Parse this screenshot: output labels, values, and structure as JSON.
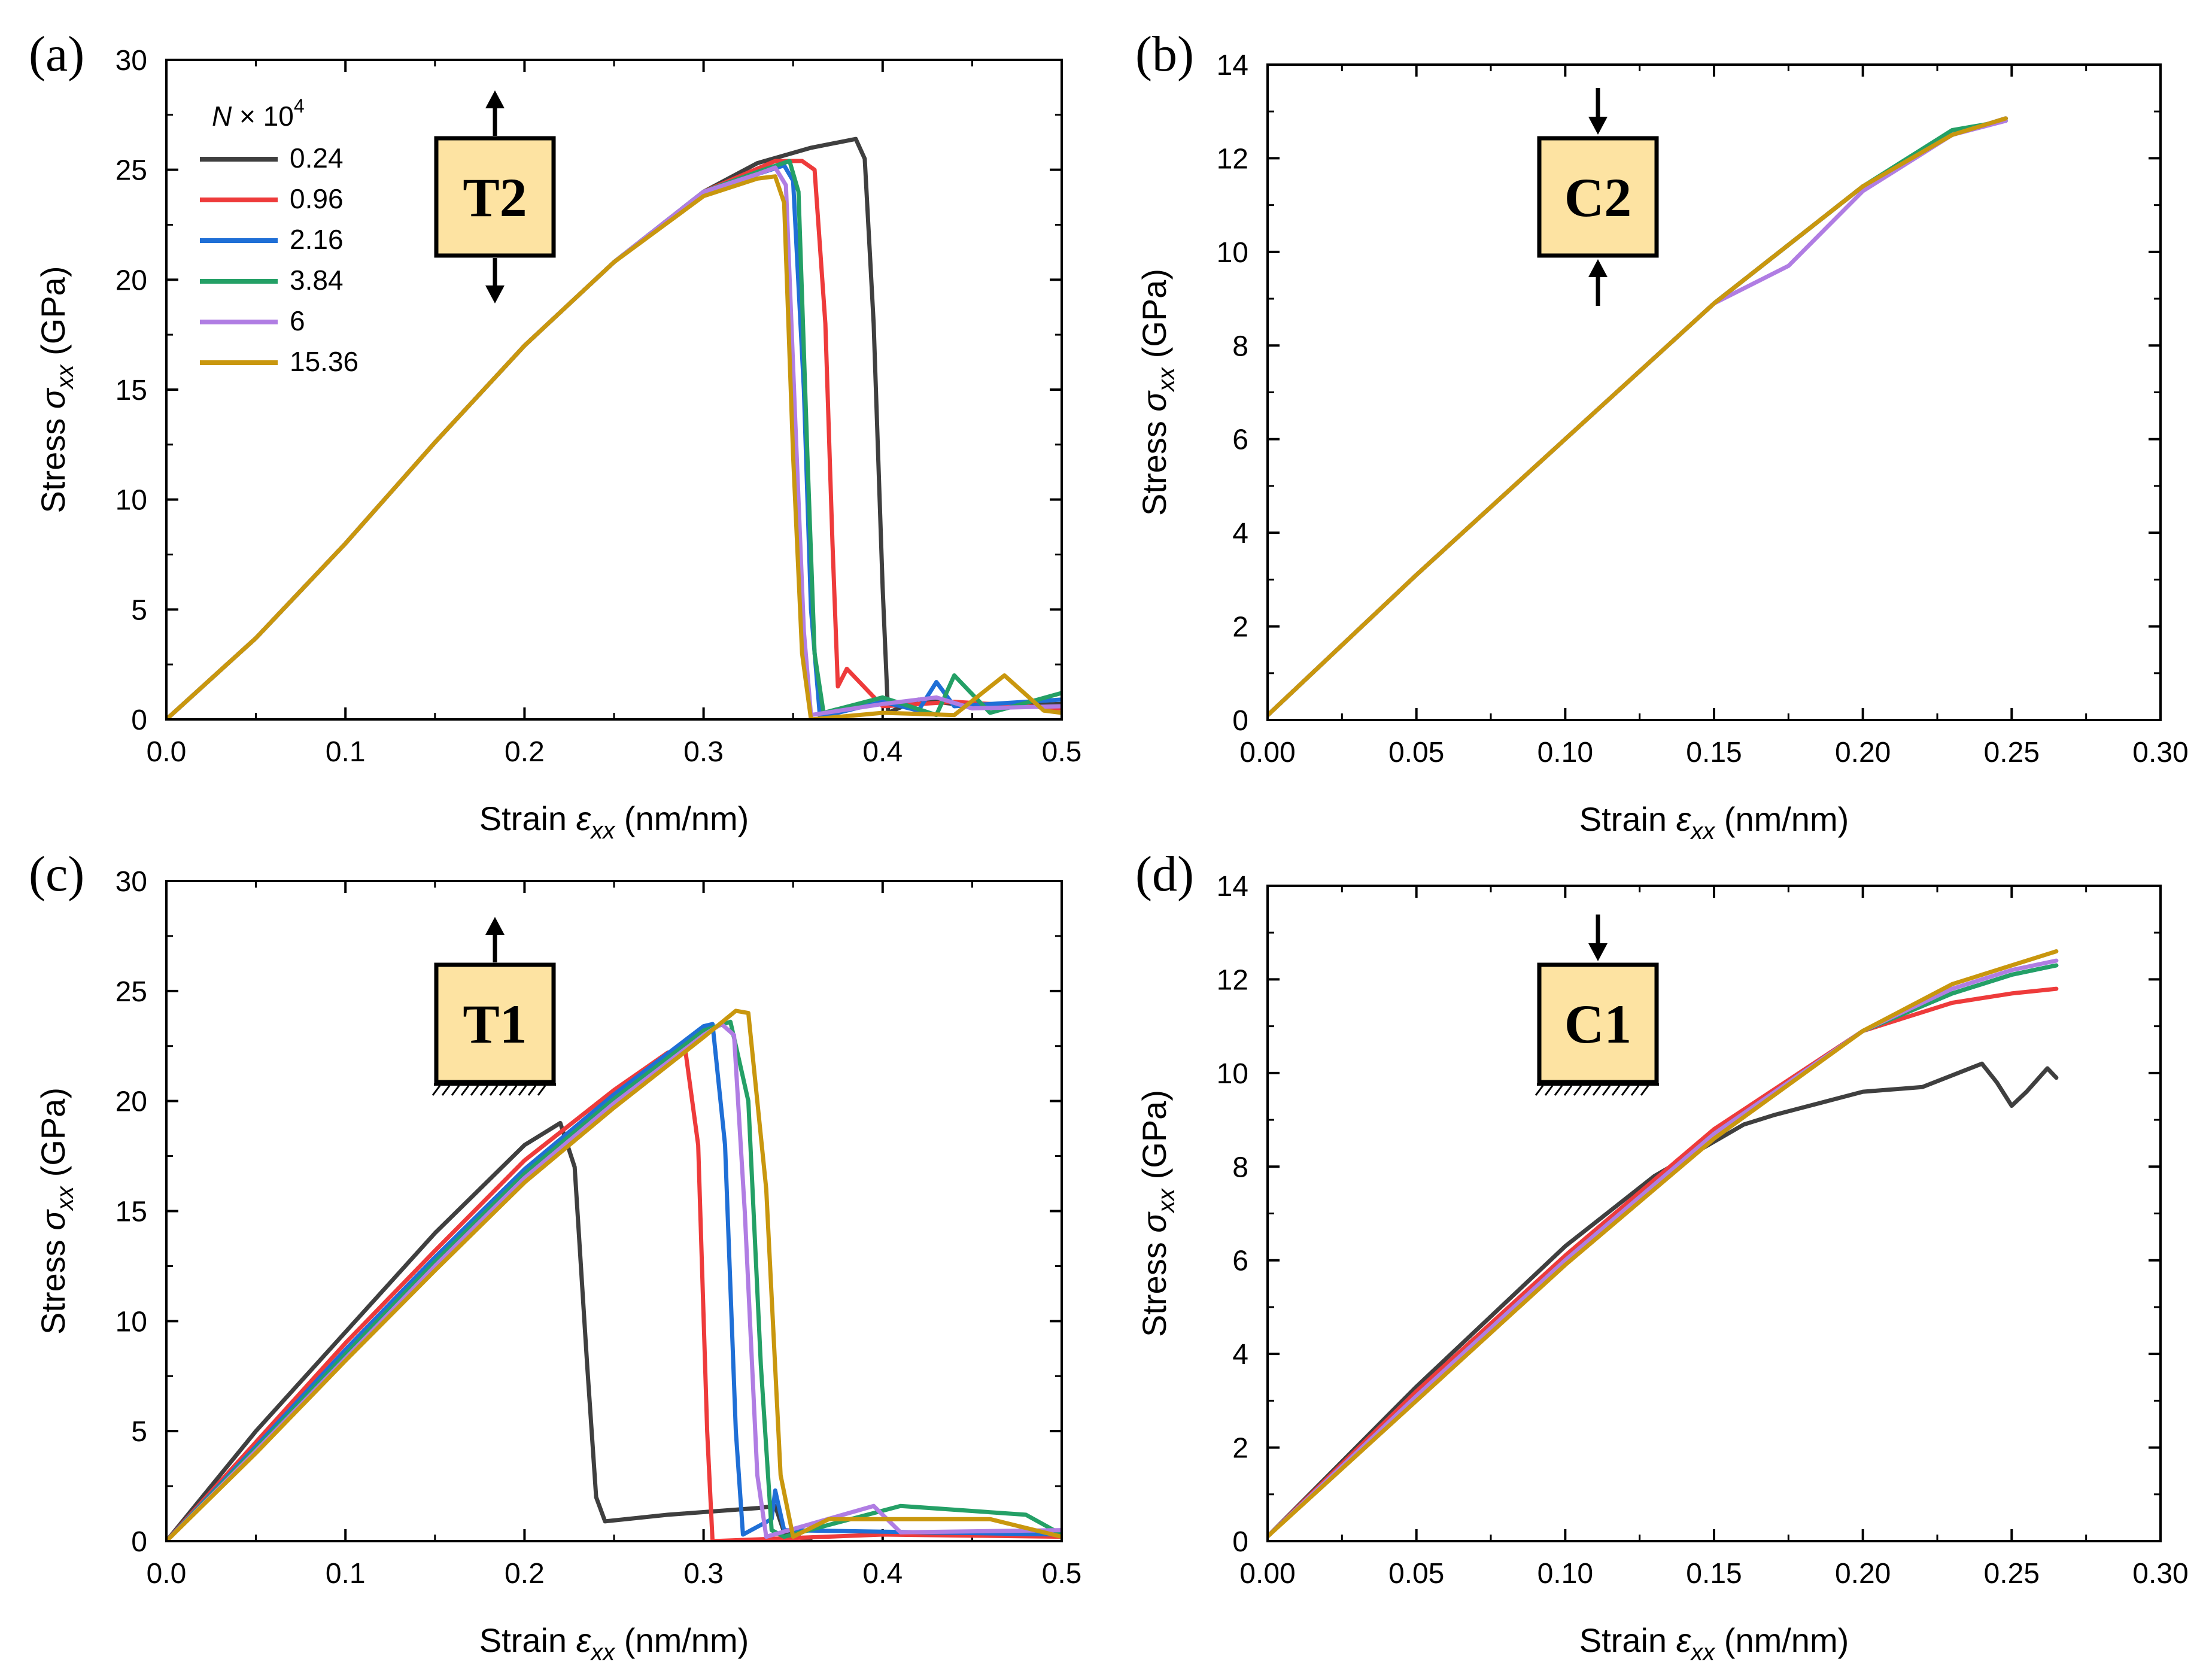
{
  "figure_type": "4-panel stress-strain figure",
  "colors": {
    "s024": "#3f3f3f",
    "s096": "#ee3b3b",
    "s216": "#1f6fd6",
    "s384": "#24a066",
    "s6": "#b07de3",
    "s1536": "#c9970e",
    "box_fill": "#fde3a2"
  },
  "legend": {
    "title": "N × 10",
    "title_var": "N",
    "title_mid": " × 10",
    "title_exp": "4",
    "items": [
      "0.24",
      "0.96",
      "2.16",
      "3.84",
      "6",
      "15.36"
    ]
  },
  "chart_data": [
    {
      "id": "a",
      "type": "line",
      "panel_label": "(a)",
      "inset_label": "T2",
      "inset_style": "double-tension",
      "xlabel": "Strain εxx (nm/nm)",
      "ylabel": "Stress σxx (GPa)",
      "xlim": [
        0,
        0.5
      ],
      "ylim": [
        0,
        30
      ],
      "xticks": [
        "0.0",
        "0.1",
        "0.2",
        "0.3",
        "0.4",
        "0.5"
      ],
      "yticks": [
        "0",
        "5",
        "10",
        "15",
        "20",
        "25",
        "30"
      ],
      "has_legend": true,
      "series": [
        {
          "name": "0.24",
          "color": "s024",
          "x": [
            0,
            0.05,
            0.1,
            0.15,
            0.2,
            0.25,
            0.3,
            0.33,
            0.36,
            0.385,
            0.39,
            0.395,
            0.4,
            0.403,
            0.42,
            0.45,
            0.5
          ],
          "y": [
            0,
            3.7,
            8,
            12.6,
            17,
            20.8,
            24,
            25.3,
            26,
            26.4,
            25.5,
            18,
            6,
            0.3,
            0.9,
            0.6,
            0.7
          ]
        },
        {
          "name": "0.96",
          "color": "s096",
          "x": [
            0,
            0.05,
            0.1,
            0.15,
            0.2,
            0.25,
            0.3,
            0.34,
            0.355,
            0.362,
            0.368,
            0.372,
            0.375,
            0.38,
            0.4,
            0.44,
            0.5
          ],
          "y": [
            0,
            3.7,
            8,
            12.6,
            17,
            20.8,
            24,
            25.4,
            25.4,
            25,
            18,
            8,
            1.5,
            2.3,
            0.6,
            0.8,
            0.5
          ]
        },
        {
          "name": "2.16",
          "color": "s216",
          "x": [
            0,
            0.05,
            0.1,
            0.15,
            0.2,
            0.25,
            0.3,
            0.33,
            0.345,
            0.35,
            0.356,
            0.36,
            0.365,
            0.4,
            0.42,
            0.43,
            0.44,
            0.5
          ],
          "y": [
            0,
            3.7,
            8,
            12.6,
            17,
            20.8,
            24,
            24.8,
            25.2,
            24.5,
            15,
            5,
            0.1,
            0.8,
            0.4,
            1.7,
            0.6,
            0.9
          ]
        },
        {
          "name": "3.84",
          "color": "s384",
          "x": [
            0,
            0.05,
            0.1,
            0.15,
            0.2,
            0.25,
            0.3,
            0.33,
            0.348,
            0.353,
            0.358,
            0.362,
            0.367,
            0.4,
            0.43,
            0.44,
            0.46,
            0.5
          ],
          "y": [
            0,
            3.7,
            8,
            12.6,
            17,
            20.8,
            24,
            24.9,
            25.4,
            24,
            12,
            3,
            0.3,
            1,
            0.2,
            2,
            0.3,
            1.2
          ]
        },
        {
          "name": "6",
          "color": "s6",
          "x": [
            0,
            0.05,
            0.1,
            0.15,
            0.2,
            0.25,
            0.3,
            0.33,
            0.34,
            0.346,
            0.351,
            0.356,
            0.36,
            0.4,
            0.43,
            0.45,
            0.5
          ],
          "y": [
            0,
            3.7,
            8,
            12.6,
            17,
            20.8,
            24,
            24.8,
            25.1,
            24.3,
            14,
            4,
            0.2,
            0.7,
            1,
            0.5,
            0.6
          ]
        },
        {
          "name": "15.36",
          "color": "s1536",
          "x": [
            0,
            0.05,
            0.1,
            0.15,
            0.2,
            0.25,
            0.3,
            0.33,
            0.34,
            0.345,
            0.35,
            0.355,
            0.36,
            0.4,
            0.44,
            0.468,
            0.49,
            0.5
          ],
          "y": [
            0,
            3.7,
            8,
            12.6,
            17,
            20.8,
            23.8,
            24.6,
            24.7,
            23.5,
            12,
            3,
            0,
            0.3,
            0.2,
            2,
            0.4,
            0.3
          ]
        }
      ]
    },
    {
      "id": "b",
      "type": "line",
      "panel_label": "(b)",
      "inset_label": "C2",
      "inset_style": "double-compression",
      "xlabel": "Strain εxx (nm/nm)",
      "ylabel": "Stress σxx (GPa)",
      "xlim": [
        0,
        0.3
      ],
      "ylim": [
        0,
        14
      ],
      "xticks": [
        "0.00",
        "0.05",
        "0.10",
        "0.15",
        "0.20",
        "0.25",
        "0.30"
      ],
      "yticks": [
        "0",
        "2",
        "4",
        "6",
        "8",
        "10",
        "12",
        "14"
      ],
      "has_legend": false,
      "series": [
        {
          "name": "0.24",
          "color": "s024",
          "x": [
            0,
            0.05,
            0.1,
            0.15,
            0.2,
            0.23,
            0.248
          ],
          "y": [
            0.1,
            3.1,
            6,
            8.9,
            11.4,
            12.5,
            12.85
          ]
        },
        {
          "name": "0.96",
          "color": "s096",
          "x": [
            0,
            0.05,
            0.1,
            0.15,
            0.2,
            0.23,
            0.248
          ],
          "y": [
            0.1,
            3.1,
            6,
            8.9,
            11.4,
            12.5,
            12.85
          ]
        },
        {
          "name": "2.16",
          "color": "s216",
          "x": [
            0,
            0.05,
            0.1,
            0.15,
            0.2,
            0.23,
            0.248
          ],
          "y": [
            0.1,
            3.1,
            6,
            8.9,
            11.4,
            12.5,
            12.85
          ]
        },
        {
          "name": "3.84",
          "color": "s384",
          "x": [
            0,
            0.05,
            0.1,
            0.15,
            0.2,
            0.23,
            0.248
          ],
          "y": [
            0.1,
            3.1,
            6,
            8.9,
            11.4,
            12.6,
            12.8
          ]
        },
        {
          "name": "6",
          "color": "s6",
          "x": [
            0,
            0.05,
            0.1,
            0.15,
            0.175,
            0.2,
            0.23,
            0.248
          ],
          "y": [
            0.1,
            3.1,
            6,
            8.9,
            9.7,
            11.3,
            12.5,
            12.8
          ]
        },
        {
          "name": "15.36",
          "color": "s1536",
          "x": [
            0,
            0.05,
            0.1,
            0.15,
            0.2,
            0.23,
            0.248
          ],
          "y": [
            0.1,
            3.1,
            6,
            8.9,
            11.4,
            12.5,
            12.85
          ]
        }
      ]
    },
    {
      "id": "c",
      "type": "line",
      "panel_label": "(c)",
      "inset_label": "T1",
      "inset_style": "single-tension-fixed",
      "xlabel": "Strain εxx (nm/nm)",
      "ylabel": "Stress σxx (GPa)",
      "xlim": [
        0,
        0.5
      ],
      "ylim": [
        0,
        30
      ],
      "xticks": [
        "0.0",
        "0.1",
        "0.2",
        "0.3",
        "0.4",
        "0.5"
      ],
      "yticks": [
        "0",
        "5",
        "10",
        "15",
        "20",
        "25",
        "30"
      ],
      "has_legend": false,
      "series": [
        {
          "name": "0.24",
          "color": "s024",
          "x": [
            0,
            0.05,
            0.1,
            0.15,
            0.2,
            0.22,
            0.228,
            0.235,
            0.24,
            0.245,
            0.28,
            0.33,
            0.34,
            0.345,
            0.36
          ],
          "y": [
            0,
            5,
            9.5,
            14,
            18,
            19,
            17,
            8,
            2,
            0.9,
            1.2,
            1.5,
            1.6,
            0.4,
            0
          ]
        },
        {
          "name": "0.96",
          "color": "s096",
          "x": [
            0,
            0.05,
            0.1,
            0.15,
            0.2,
            0.25,
            0.28,
            0.29,
            0.297,
            0.302,
            0.305,
            0.4,
            0.5
          ],
          "y": [
            0,
            4.5,
            9,
            13.2,
            17.3,
            20.5,
            22.2,
            22.2,
            18,
            5,
            0,
            0.3,
            0.2
          ]
        },
        {
          "name": "2.16",
          "color": "s216",
          "x": [
            0,
            0.05,
            0.1,
            0.15,
            0.2,
            0.25,
            0.3,
            0.305,
            0.312,
            0.318,
            0.322,
            0.338,
            0.34,
            0.345,
            0.5
          ],
          "y": [
            0,
            4.3,
            8.7,
            12.9,
            16.9,
            20.3,
            23.4,
            23.5,
            18,
            5,
            0.3,
            1,
            2.3,
            0.5,
            0.3
          ]
        },
        {
          "name": "3.84",
          "color": "s384",
          "x": [
            0,
            0.05,
            0.1,
            0.15,
            0.2,
            0.25,
            0.3,
            0.315,
            0.325,
            0.332,
            0.338,
            0.345,
            0.41,
            0.48,
            0.5
          ],
          "y": [
            0,
            4.2,
            8.5,
            12.7,
            16.7,
            20.1,
            23.2,
            23.6,
            20,
            8,
            0.5,
            0.2,
            1.6,
            1.2,
            0.3
          ]
        },
        {
          "name": "6",
          "color": "s6",
          "x": [
            0,
            0.05,
            0.1,
            0.15,
            0.2,
            0.25,
            0.3,
            0.31,
            0.317,
            0.323,
            0.33,
            0.335,
            0.395,
            0.41,
            0.5
          ],
          "y": [
            0,
            4.1,
            8.3,
            12.5,
            16.5,
            19.9,
            23,
            23.5,
            23,
            15,
            3,
            0.2,
            1.6,
            0.4,
            0.5
          ]
        },
        {
          "name": "15.36",
          "color": "s1536",
          "x": [
            0,
            0.05,
            0.1,
            0.15,
            0.2,
            0.25,
            0.3,
            0.318,
            0.325,
            0.335,
            0.343,
            0.35,
            0.37,
            0.46,
            0.5
          ],
          "y": [
            0,
            4,
            8.2,
            12.3,
            16.3,
            19.7,
            22.9,
            24.1,
            24,
            16,
            3,
            0.2,
            1,
            1,
            0.2
          ]
        }
      ]
    },
    {
      "id": "d",
      "type": "line",
      "panel_label": "(d)",
      "inset_label": "C1",
      "inset_style": "single-compression-fixed",
      "xlabel": "Strain εxx (nm/nm)",
      "ylabel": "Stress σxx (GPa)",
      "xlim": [
        0,
        0.3
      ],
      "ylim": [
        0,
        14
      ],
      "xticks": [
        "0.00",
        "0.05",
        "0.10",
        "0.15",
        "0.20",
        "0.25",
        "0.30"
      ],
      "yticks": [
        "0",
        "2",
        "4",
        "6",
        "8",
        "10",
        "12",
        "14"
      ],
      "has_legend": false,
      "series": [
        {
          "name": "0.24",
          "color": "s024",
          "x": [
            0,
            0.05,
            0.1,
            0.13,
            0.16,
            0.17,
            0.2,
            0.22,
            0.24,
            0.245,
            0.25,
            0.255,
            0.262,
            0.265
          ],
          "y": [
            0.1,
            3.3,
            6.3,
            7.8,
            8.9,
            9.1,
            9.6,
            9.7,
            10.2,
            9.8,
            9.3,
            9.6,
            10.1,
            9.9
          ]
        },
        {
          "name": "0.96",
          "color": "s096",
          "x": [
            0,
            0.05,
            0.1,
            0.15,
            0.2,
            0.23,
            0.25,
            0.265
          ],
          "y": [
            0.1,
            3.2,
            6.1,
            8.8,
            10.9,
            11.5,
            11.7,
            11.8
          ]
        },
        {
          "name": "2.16",
          "color": "s216",
          "x": [
            0,
            0.05,
            0.1,
            0.15,
            0.2,
            0.23,
            0.25,
            0.265
          ],
          "y": [
            0.1,
            3.1,
            6,
            8.7,
            10.9,
            11.7,
            12.1,
            12.3
          ]
        },
        {
          "name": "3.84",
          "color": "s384",
          "x": [
            0,
            0.05,
            0.1,
            0.15,
            0.2,
            0.23,
            0.25,
            0.265
          ],
          "y": [
            0.1,
            3.1,
            6,
            8.7,
            10.9,
            11.7,
            12.1,
            12.3
          ]
        },
        {
          "name": "6",
          "color": "s6",
          "x": [
            0,
            0.05,
            0.1,
            0.15,
            0.2,
            0.23,
            0.25,
            0.265
          ],
          "y": [
            0.1,
            3.1,
            6,
            8.7,
            10.9,
            11.8,
            12.2,
            12.4
          ]
        },
        {
          "name": "15.36",
          "color": "s1536",
          "x": [
            0,
            0.05,
            0.1,
            0.15,
            0.2,
            0.23,
            0.25,
            0.265
          ],
          "y": [
            0.1,
            3,
            5.9,
            8.6,
            10.9,
            11.9,
            12.3,
            12.6
          ]
        }
      ]
    }
  ]
}
